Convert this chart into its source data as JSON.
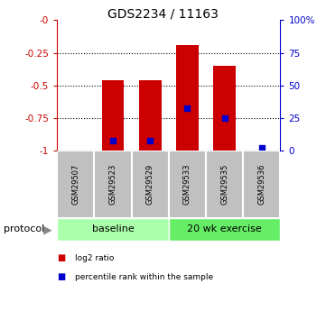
{
  "title": "GDS2234 / 11163",
  "samples": [
    "GSM29507",
    "GSM29523",
    "GSM29529",
    "GSM29533",
    "GSM29535",
    "GSM29536"
  ],
  "log2_ratio": [
    0.0,
    -0.46,
    -0.46,
    -0.19,
    -0.35,
    0.0
  ],
  "percentile_rank": [
    null,
    0.08,
    0.08,
    0.33,
    0.25,
    0.02
  ],
  "ymin": -1.0,
  "ymax": 0.0,
  "yticks_left": [
    0,
    -0.25,
    -0.5,
    -0.75,
    -1.0
  ],
  "yticks_left_labels": [
    "-0",
    "-0.25",
    "-0.5",
    "-0.75",
    "-1"
  ],
  "yticks_right_labels": [
    "100%",
    "75",
    "50",
    "25",
    "0"
  ],
  "yticks_right_vals": [
    0,
    -0.25,
    -0.5,
    -0.75,
    -1.0
  ],
  "groups": [
    {
      "label": "baseline",
      "start": 0,
      "end": 3,
      "color": "#aaffaa"
    },
    {
      "label": "20 wk exercise",
      "start": 3,
      "end": 6,
      "color": "#66ee66"
    }
  ],
  "bar_color": "#cc0000",
  "marker_color": "#0000cc",
  "left_axis_color": "#cc0000",
  "right_axis_color": "#0000cc",
  "bg_color": "#ffffff",
  "protocol_label": "protocol",
  "sample_box_color": "#c0c0c0",
  "legend_items": [
    {
      "color": "#cc0000",
      "label": "log2 ratio"
    },
    {
      "color": "#0000cc",
      "label": "percentile rank within the sample"
    }
  ]
}
